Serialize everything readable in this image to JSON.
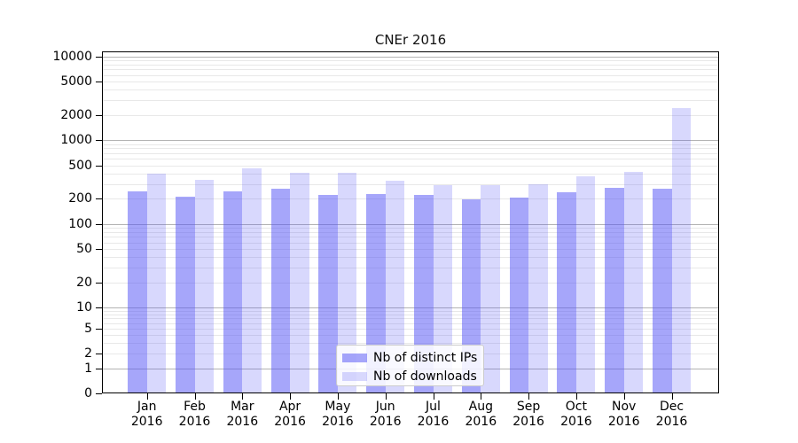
{
  "title": "CNEr 2016",
  "chart_data": {
    "type": "bar",
    "title": "CNEr 2016",
    "categories": [
      "Jan 2016",
      "Feb 2016",
      "Mar 2016",
      "Apr 2016",
      "May 2016",
      "Jun 2016",
      "Jul 2016",
      "Aug 2016",
      "Sep 2016",
      "Oct 2016",
      "Nov 2016",
      "Dec 2016"
    ],
    "series": [
      {
        "name": "Nb of distinct IPs",
        "values": [
          242,
          210,
          242,
          261,
          222,
          225,
          222,
          195,
          204,
          237,
          271,
          261
        ],
        "fill": "rgba(85,85,245,0.52)"
      },
      {
        "name": "Nb of downloads",
        "values": [
          394,
          338,
          465,
          410,
          405,
          328,
          291,
          288,
          299,
          370,
          416,
          2400
        ],
        "fill": "rgba(85,85,245,0.23)"
      }
    ],
    "xlabel": "",
    "ylabel": "",
    "yscale": "symlog",
    "y_ticks": [
      0,
      1,
      2,
      5,
      10,
      20,
      50,
      100,
      200,
      500,
      1000,
      2000,
      5000,
      10000
    ],
    "ylim": [
      0,
      10500
    ],
    "grid": "horizontal-log-minor",
    "legend_position": "lower center"
  },
  "colors": {
    "bar_dark_on_white": "#a9a9f7",
    "bar_light_on_white": "#d9d9fa",
    "grid_major": "#b3b3b3",
    "grid_minor": "#e8e8e8",
    "axis": "#000000",
    "legend_border": "#cccccc",
    "background": "#ffffff"
  }
}
